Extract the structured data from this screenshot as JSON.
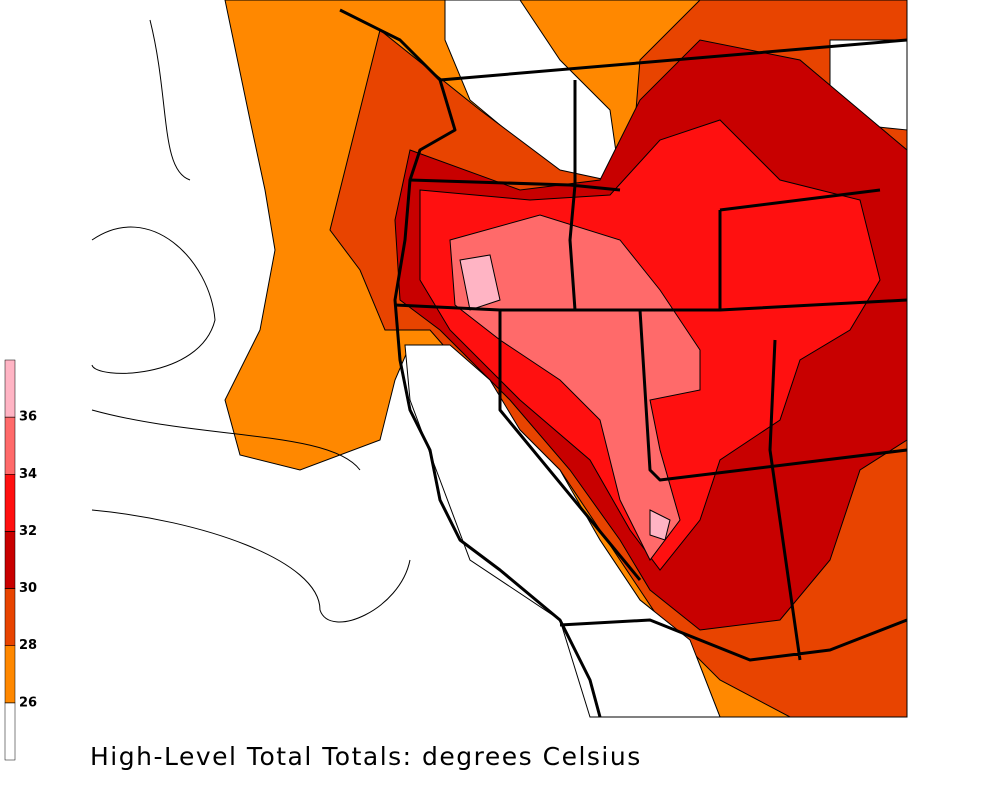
{
  "legend": {
    "ticks": [
      26,
      28,
      30,
      32,
      34,
      36
    ],
    "colors": [
      "#ffffff",
      "#ff8800",
      "#e84400",
      "#c80000",
      "#ff1010",
      "#ff6a6a",
      "#ffb4c4"
    ]
  },
  "caption": "High-Level Total Totals: degrees Celsius"
}
